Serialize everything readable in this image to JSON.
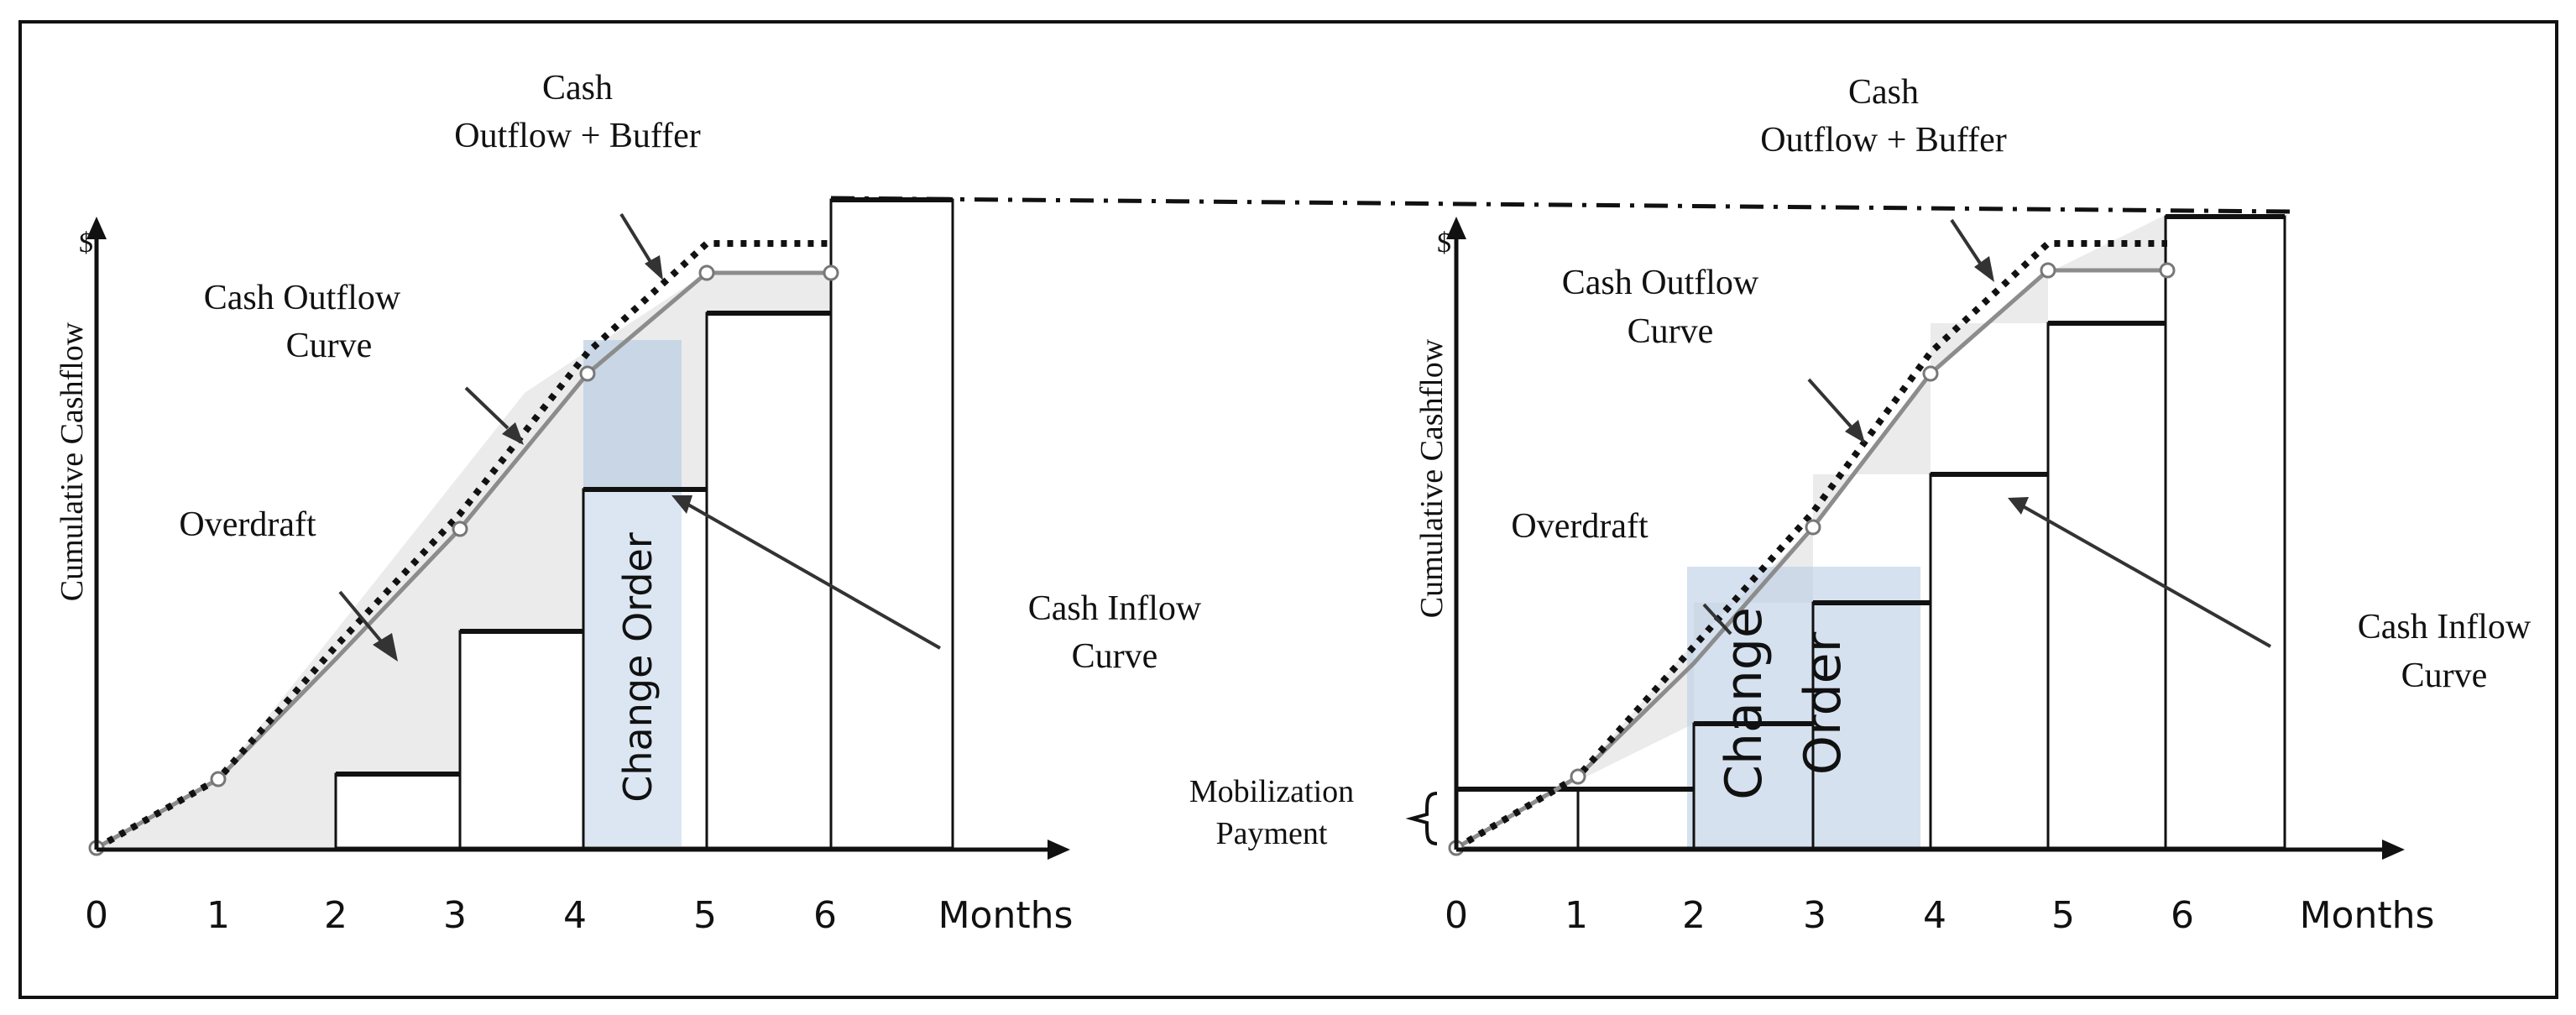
{
  "left_panel": {
    "y_axis_symbol": "$",
    "y_axis_label": "Cumulative Cashflow",
    "x_axis_label": "Months",
    "x_ticks": [
      "0",
      "1",
      "2",
      "3",
      "4",
      "5",
      "6"
    ],
    "labels": {
      "buffer_line1": "Cash",
      "buffer_line2": "Outflow + Buffer",
      "outflow_line1": "Cash Outflow",
      "outflow_line2": "Curve",
      "overdraft": "Overdraft",
      "inflow_line1": "Cash Inflow",
      "inflow_line2": "Curve",
      "change_order": "Change Order"
    }
  },
  "right_panel": {
    "y_axis_symbol": "$",
    "y_axis_label": "Cumulative Cashflow",
    "x_axis_label": "Months",
    "x_ticks": [
      "0",
      "1",
      "2",
      "3",
      "4",
      "5",
      "6"
    ],
    "labels": {
      "buffer_line1": "Cash",
      "buffer_line2": "Outflow + Buffer",
      "outflow_line1": "Cash Outflow",
      "outflow_line2": "Curve",
      "overdraft": "Overdraft",
      "inflow_line1": "Cash Inflow",
      "inflow_line2": "Curve",
      "mobilization_line1": "Mobilization",
      "mobilization_line2": "Payment",
      "change_order_line1": "Change",
      "change_order_line2": "Order"
    }
  },
  "colors": {
    "overdraft_fill": "#ebebeb",
    "change_order_fill": "#b9cde4",
    "outflow_line": "#8c8c8c",
    "stroke": "#111111"
  }
}
